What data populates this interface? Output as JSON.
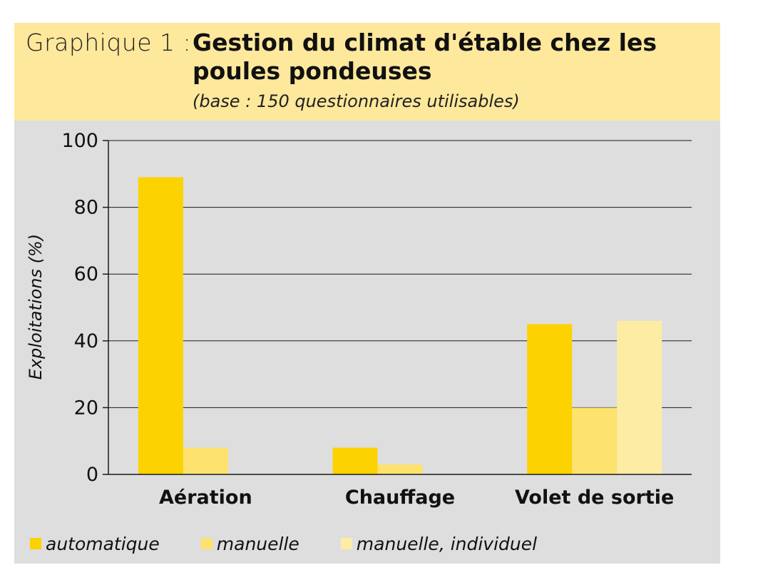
{
  "header": {
    "prefix": "Graphique 1 :",
    "title": "Gestion du climat d'étable chez les poules pondeuses",
    "subtitle": "(base : 150 questionnaires utilisables)"
  },
  "chart_data": {
    "type": "bar",
    "categories": [
      "Aération",
      "Chauffage",
      "Volet de sortie"
    ],
    "series": [
      {
        "name": "automatique",
        "values": [
          89,
          8,
          45
        ],
        "color": "#fcd200"
      },
      {
        "name": "manuelle",
        "values": [
          8,
          3,
          20
        ],
        "color": "#fde26e"
      },
      {
        "name": "manuelle, individuel",
        "values": [
          0,
          0,
          46
        ],
        "color": "#fdeca4"
      }
    ],
    "title": "Gestion du climat d'étable chez les poules pondeuses",
    "xlabel": "",
    "ylabel": "Exploitations (%)",
    "ylim": [
      0,
      100
    ],
    "yticks": [
      0,
      20,
      40,
      60,
      80,
      100
    ],
    "grid": true,
    "legend_position": "bottom"
  }
}
